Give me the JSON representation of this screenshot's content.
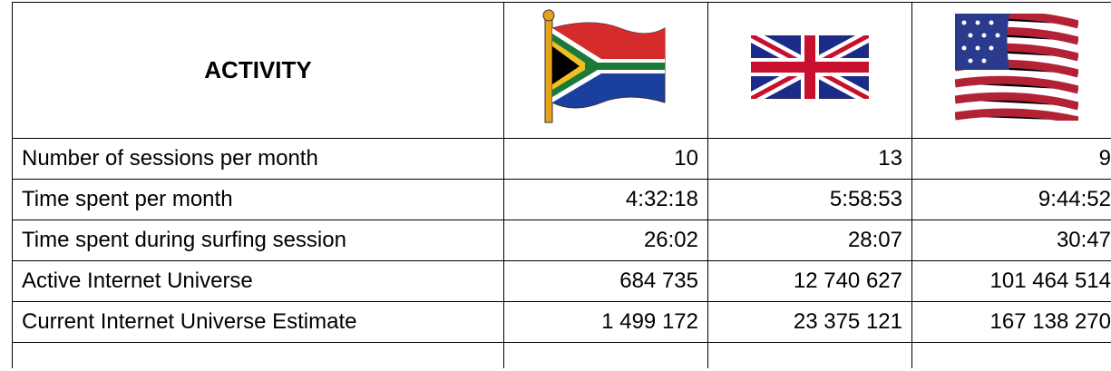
{
  "table": {
    "header": "ACTIVITY",
    "rows": [
      [
        "Number of sessions per month",
        "10",
        "13",
        "9"
      ],
      [
        "Time spent per month",
        "4:32:18",
        "5:58:53",
        "9:44:52"
      ],
      [
        "Time spent during surfing session",
        "26:02",
        "28:07",
        "30:47"
      ],
      [
        "Active Internet Universe",
        "684 735",
        "12 740 627",
        "101 464 514"
      ],
      [
        "Current Internet Universe Estimate",
        "1 499 172",
        "23 375 121",
        "167 138 270"
      ]
    ]
  }
}
